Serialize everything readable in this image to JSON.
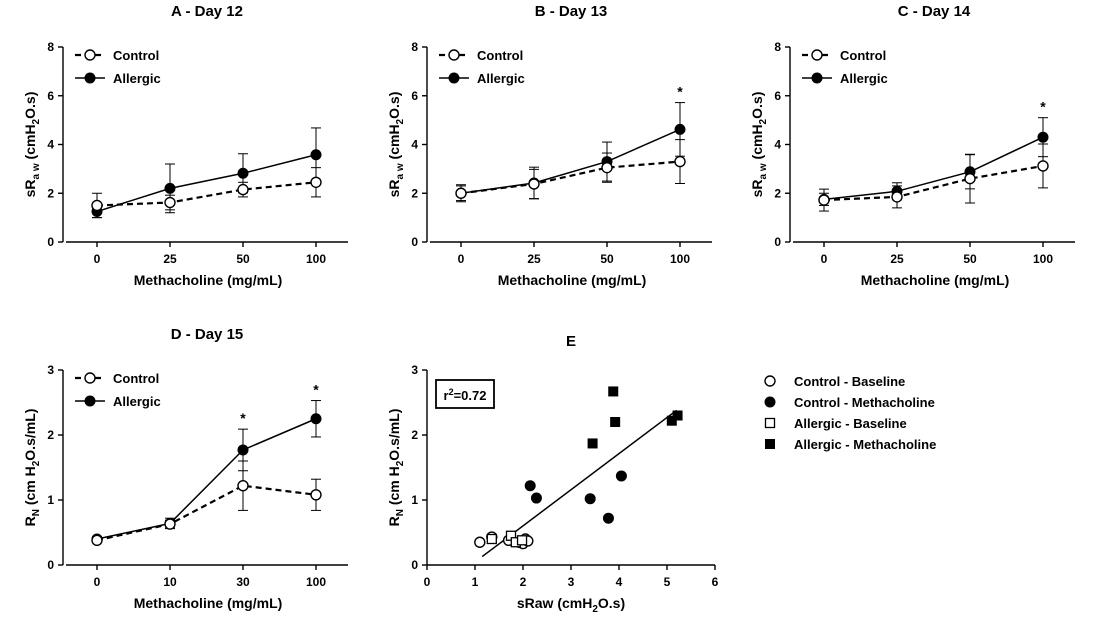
{
  "chart_data": [
    {
      "id": "A",
      "type": "line",
      "title": "A - Day 12",
      "xlabel": "Methacholine (mg/mL)",
      "ylabel": {
        "main": "sR",
        "sub": "a w",
        "unit_pre": " (cmH",
        "unit_sub": "2",
        "unit_post": "O.s)"
      },
      "categories": [
        "0",
        "25",
        "50",
        "100"
      ],
      "ylim": [
        0,
        8
      ],
      "yticks": [
        0,
        2,
        4,
        6,
        8
      ],
      "series": [
        {
          "name": "Control",
          "marker": "open-circle",
          "dashed": true,
          "values": [
            1.5,
            1.62,
            2.15,
            2.45
          ],
          "errors": [
            0.5,
            0.3,
            0.3,
            0.6
          ]
        },
        {
          "name": "Allergic",
          "marker": "filled-circle",
          "dashed": false,
          "values": [
            1.25,
            2.2,
            2.82,
            3.58
          ],
          "errors": [
            0.25,
            1.0,
            0.8,
            1.1
          ]
        }
      ],
      "significance": []
    },
    {
      "id": "B",
      "type": "line",
      "title": "B - Day 13",
      "xlabel": "Methacholine (mg/mL)",
      "ylabel": {
        "main": "sR",
        "sub": "a w",
        "unit_pre": " (cmH",
        "unit_sub": "2",
        "unit_post": "O.s)"
      },
      "categories": [
        "0",
        "25",
        "50",
        "100"
      ],
      "ylim": [
        0,
        8
      ],
      "yticks": [
        0,
        2,
        4,
        6,
        8
      ],
      "series": [
        {
          "name": "Control",
          "marker": "open-circle",
          "dashed": true,
          "values": [
            2.0,
            2.38,
            3.05,
            3.3
          ],
          "errors": [
            0.35,
            0.6,
            0.6,
            0.9
          ]
        },
        {
          "name": "Allergic",
          "marker": "filled-circle",
          "dashed": false,
          "values": [
            2.0,
            2.42,
            3.3,
            4.62
          ],
          "errors": [
            0.3,
            0.65,
            0.8,
            1.1
          ]
        }
      ],
      "significance": [
        {
          "index": 3,
          "label": "*"
        }
      ]
    },
    {
      "id": "C",
      "type": "line",
      "title": "C - Day 14",
      "xlabel": "Methacholine (mg/mL)",
      "ylabel": {
        "main": "sR",
        "sub": "a w",
        "unit_pre": " (cmH",
        "unit_sub": "2",
        "unit_post": "O.s)"
      },
      "categories": [
        "0",
        "25",
        "50",
        "100"
      ],
      "ylim": [
        0,
        8
      ],
      "yticks": [
        0,
        2,
        4,
        6,
        8
      ],
      "series": [
        {
          "name": "Control",
          "marker": "open-circle",
          "dashed": true,
          "values": [
            1.72,
            1.85,
            2.6,
            3.12
          ],
          "errors": [
            0.45,
            0.45,
            1.0,
            0.9
          ]
        },
        {
          "name": "Allergic",
          "marker": "filled-circle",
          "dashed": false,
          "values": [
            1.75,
            2.08,
            2.88,
            4.3
          ],
          "errors": [
            0.25,
            0.35,
            0.7,
            0.8
          ]
        }
      ],
      "significance": [
        {
          "index": 3,
          "label": "*"
        }
      ]
    },
    {
      "id": "D",
      "type": "line",
      "title": "D - Day 15",
      "xlabel": "Methacholine (mg/mL)",
      "ylabel": {
        "main": "R",
        "sub": "N",
        "unit_pre": " (cm H",
        "unit_sub": "2",
        "unit_post": "O.s/mL)"
      },
      "categories": [
        "0",
        "10",
        "30",
        "100"
      ],
      "ylim": [
        0,
        3
      ],
      "yticks": [
        0,
        1,
        2,
        3
      ],
      "series": [
        {
          "name": "Control",
          "marker": "open-circle",
          "dashed": true,
          "values": [
            0.38,
            0.63,
            1.22,
            1.08
          ],
          "errors": [
            0.04,
            0.06,
            0.38,
            0.24
          ]
        },
        {
          "name": "Allergic",
          "marker": "filled-circle",
          "dashed": false,
          "values": [
            0.4,
            0.64,
            1.77,
            2.25
          ],
          "errors": [
            0.04,
            0.08,
            0.32,
            0.28
          ]
        }
      ],
      "significance": [
        {
          "index": 2,
          "label": "*"
        },
        {
          "index": 3,
          "label": "*"
        }
      ]
    },
    {
      "id": "E",
      "type": "scatter",
      "title": "E",
      "xlabel": "sRaw (cmH2O.s)",
      "xlabel_parts": {
        "pre": "sRaw (cmH",
        "sub": "2",
        "post": "O.s)"
      },
      "ylabel": {
        "main": "R",
        "sub": "N",
        "unit_pre": " (cm H",
        "unit_sub": "2",
        "unit_post": "O.s/mL)"
      },
      "xlim": [
        0,
        6
      ],
      "xticks": [
        0,
        1,
        2,
        3,
        4,
        5,
        6
      ],
      "ylim": [
        0,
        3
      ],
      "yticks": [
        0,
        1,
        2,
        3
      ],
      "annotation": {
        "pre": "r",
        "sup": "2",
        "post": "=0.72"
      },
      "fit_line": {
        "x": [
          1.15,
          5.2
        ],
        "y": [
          0.13,
          2.38
        ]
      },
      "series": [
        {
          "name": "Control - Baseline",
          "marker": "open-circle",
          "points": [
            [
              1.1,
              0.35
            ],
            [
              1.35,
              0.43
            ],
            [
              1.7,
              0.38
            ],
            [
              1.92,
              0.35
            ],
            [
              2.0,
              0.33
            ],
            [
              2.05,
              0.4
            ],
            [
              2.1,
              0.37
            ]
          ]
        },
        {
          "name": "Control - Methacholine",
          "marker": "filled-circle",
          "points": [
            [
              2.15,
              1.22
            ],
            [
              2.28,
              1.03
            ],
            [
              3.4,
              1.02
            ],
            [
              3.78,
              0.72
            ],
            [
              4.05,
              1.37
            ]
          ]
        },
        {
          "name": "Allergic - Baseline",
          "marker": "open-square",
          "points": [
            [
              1.35,
              0.4
            ],
            [
              1.75,
              0.45
            ],
            [
              1.85,
              0.35
            ],
            [
              1.98,
              0.38
            ]
          ]
        },
        {
          "name": "Allergic - Methacholine",
          "marker": "filled-square",
          "points": [
            [
              3.45,
              1.87
            ],
            [
              3.88,
              2.67
            ],
            [
              3.92,
              2.2
            ],
            [
              5.1,
              2.22
            ],
            [
              5.22,
              2.3
            ]
          ]
        }
      ]
    }
  ]
}
